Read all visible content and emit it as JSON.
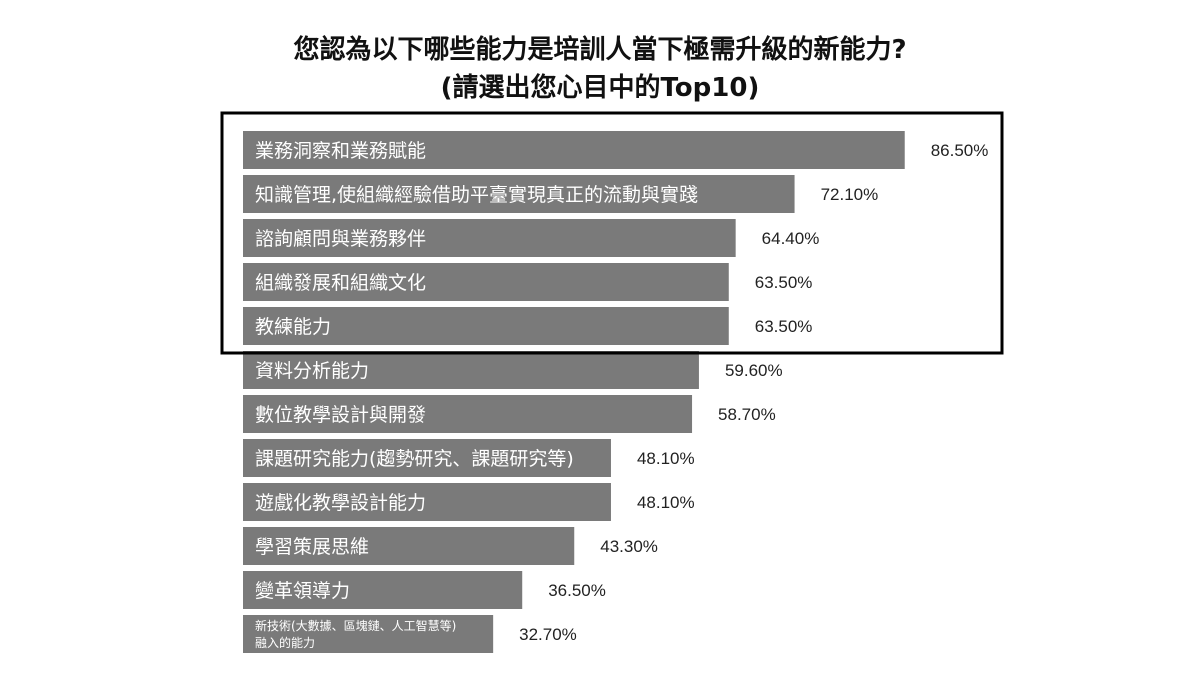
{
  "chart_data": {
    "type": "bar",
    "orientation": "horizontal",
    "title_lines": [
      "您認為以下哪些能力是培訓人當下極需升級的新能力?",
      "(請選出您心目中的Top10)"
    ],
    "categories": [
      "業務洞察和業務賦能",
      "知識管理,使組織經驗借助平臺實現真正的流動與實踐",
      "諮詢顧問與業務夥伴",
      "組織發展和組織文化",
      "教練能力",
      "資料分析能力",
      "數位教學設計與開發",
      "課題研究能力(趨勢研究、課題研究等)",
      "遊戲化教學設計能力",
      "學習策展思維",
      "變革領導力",
      "新技術(大數據、區塊鏈、人工智慧等)融入的能力"
    ],
    "values": [
      86.5,
      72.1,
      64.4,
      63.5,
      63.5,
      59.6,
      58.7,
      48.1,
      48.1,
      43.3,
      36.5,
      32.7
    ],
    "value_labels": [
      "86.50%",
      "72.10%",
      "64.40%",
      "63.50%",
      "63.50%",
      "59.60%",
      "58.70%",
      "48.10%",
      "48.10%",
      "43.30%",
      "36.50%",
      "32.70%"
    ],
    "highlight_top_n": 5,
    "bar_color": "#7a7a7a",
    "label_color": "#ffffff",
    "highlight_box_color": "#000000",
    "xlim": [
      0,
      100
    ],
    "grid": false,
    "legend": "none"
  }
}
